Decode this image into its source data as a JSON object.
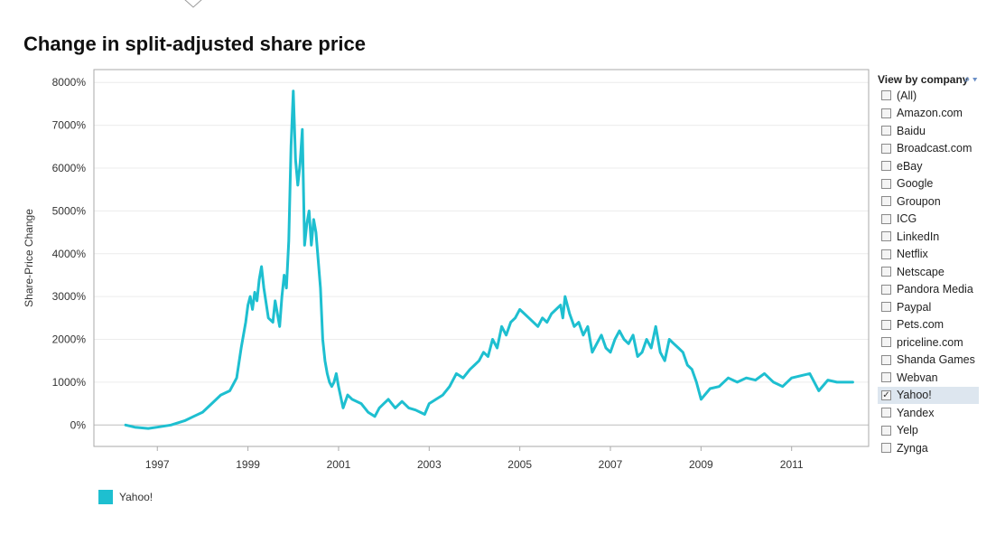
{
  "title": "Change in split-adjusted share price",
  "filter": {
    "header": "View by company",
    "items": [
      {
        "label": "(All)",
        "checked": false
      },
      {
        "label": "Amazon.com",
        "checked": false
      },
      {
        "label": "Baidu",
        "checked": false
      },
      {
        "label": "Broadcast.com",
        "checked": false
      },
      {
        "label": "eBay",
        "checked": false
      },
      {
        "label": "Google",
        "checked": false
      },
      {
        "label": "Groupon",
        "checked": false
      },
      {
        "label": "ICG",
        "checked": false
      },
      {
        "label": "LinkedIn",
        "checked": false
      },
      {
        "label": "Netflix",
        "checked": false
      },
      {
        "label": "Netscape",
        "checked": false
      },
      {
        "label": "Pandora Media",
        "checked": false
      },
      {
        "label": "Paypal",
        "checked": false
      },
      {
        "label": "Pets.com",
        "checked": false
      },
      {
        "label": "priceline.com",
        "checked": false
      },
      {
        "label": "Shanda Games",
        "checked": false
      },
      {
        "label": "Webvan",
        "checked": false
      },
      {
        "label": "Yahoo!",
        "checked": true
      },
      {
        "label": "Yandex",
        "checked": false
      },
      {
        "label": "Yelp",
        "checked": false
      },
      {
        "label": "Zynga",
        "checked": false
      }
    ]
  },
  "colors": {
    "series": "#1ebfd0",
    "grid": "#ececec",
    "axis": "#aaaaaa"
  },
  "chart_data": {
    "type": "line",
    "title": "Change in split-adjusted share price",
    "xlabel": "",
    "ylabel": "Share-Price Change",
    "xlim": [
      1995.6,
      2012.7
    ],
    "ylim": [
      -500,
      8300
    ],
    "yticks": [
      0,
      1000,
      2000,
      3000,
      4000,
      5000,
      6000,
      7000,
      8000
    ],
    "ytick_labels": [
      "0%",
      "1000%",
      "2000%",
      "3000%",
      "4000%",
      "5000%",
      "6000%",
      "7000%",
      "8000%"
    ],
    "xticks": [
      1997,
      1999,
      2001,
      2003,
      2005,
      2007,
      2009,
      2011
    ],
    "xtick_labels": [
      "1997",
      "1999",
      "2001",
      "2003",
      "2005",
      "2007",
      "2009",
      "2011"
    ],
    "grid": true,
    "legend": "bottom-left",
    "series": [
      {
        "name": "Yahoo!",
        "x": [
          1996.3,
          1996.5,
          1996.8,
          1997.0,
          1997.3,
          1997.6,
          1997.8,
          1998.0,
          1998.2,
          1998.4,
          1998.6,
          1998.75,
          1998.85,
          1998.95,
          1999.0,
          1999.05,
          1999.1,
          1999.15,
          1999.2,
          1999.25,
          1999.3,
          1999.35,
          1999.45,
          1999.55,
          1999.6,
          1999.7,
          1999.75,
          1999.8,
          1999.85,
          1999.9,
          1999.95,
          2000.0,
          2000.05,
          2000.1,
          2000.15,
          2000.2,
          2000.25,
          2000.3,
          2000.35,
          2000.4,
          2000.45,
          2000.5,
          2000.6,
          2000.65,
          2000.7,
          2000.75,
          2000.8,
          2000.85,
          2000.9,
          2000.95,
          2001.0,
          2001.1,
          2001.2,
          2001.3,
          2001.5,
          2001.65,
          2001.8,
          2001.9,
          2002.0,
          2002.1,
          2002.25,
          2002.4,
          2002.55,
          2002.7,
          2002.8,
          2002.9,
          2003.0,
          2003.15,
          2003.3,
          2003.45,
          2003.6,
          2003.75,
          2003.9,
          2004.0,
          2004.1,
          2004.2,
          2004.3,
          2004.4,
          2004.5,
          2004.6,
          2004.7,
          2004.8,
          2004.9,
          2005.0,
          2005.1,
          2005.2,
          2005.3,
          2005.4,
          2005.5,
          2005.6,
          2005.7,
          2005.8,
          2005.9,
          2005.95,
          2006.0,
          2006.1,
          2006.2,
          2006.3,
          2006.4,
          2006.5,
          2006.6,
          2006.7,
          2006.8,
          2006.9,
          2007.0,
          2007.1,
          2007.2,
          2007.3,
          2007.4,
          2007.5,
          2007.6,
          2007.7,
          2007.8,
          2007.9,
          2008.0,
          2008.1,
          2008.2,
          2008.3,
          2008.4,
          2008.5,
          2008.6,
          2008.7,
          2008.8,
          2008.9,
          2009.0,
          2009.2,
          2009.4,
          2009.6,
          2009.8,
          2010.0,
          2010.2,
          2010.4,
          2010.6,
          2010.8,
          2011.0,
          2011.2,
          2011.4,
          2011.5,
          2011.6,
          2011.8,
          2012.0,
          2012.2,
          2012.35
        ],
        "y": [
          0,
          -50,
          -80,
          -50,
          0,
          100,
          200,
          300,
          500,
          700,
          800,
          1100,
          1800,
          2400,
          2800,
          3000,
          2700,
          3100,
          2900,
          3400,
          3700,
          3200,
          2500,
          2400,
          2900,
          2300,
          3000,
          3500,
          3200,
          4300,
          6500,
          7800,
          6200,
          5600,
          6100,
          6900,
          4200,
          4700,
          5000,
          4200,
          4800,
          4500,
          3200,
          2000,
          1500,
          1200,
          1000,
          900,
          1000,
          1200,
          900,
          400,
          700,
          600,
          500,
          300,
          200,
          400,
          500,
          600,
          400,
          550,
          400,
          350,
          300,
          250,
          500,
          600,
          700,
          900,
          1200,
          1100,
          1300,
          1400,
          1500,
          1700,
          1600,
          2000,
          1800,
          2300,
          2100,
          2400,
          2500,
          2700,
          2600,
          2500,
          2400,
          2300,
          2500,
          2400,
          2600,
          2700,
          2800,
          2500,
          3000,
          2600,
          2300,
          2400,
          2100,
          2300,
          1700,
          1900,
          2100,
          1800,
          1700,
          2000,
          2200,
          2000,
          1900,
          2100,
          1600,
          1700,
          2000,
          1800,
          2300,
          1700,
          1500,
          2000,
          1900,
          1800,
          1700,
          1400,
          1300,
          1000,
          600,
          850,
          900,
          1100,
          1000,
          1100,
          1050,
          1200,
          1000,
          900,
          1100,
          1150,
          1200,
          1000,
          800,
          1050,
          1000,
          1000,
          1000
        ]
      }
    ]
  }
}
